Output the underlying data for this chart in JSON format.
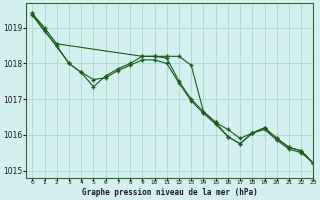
{
  "title": "Graphe pression niveau de la mer (hPa)",
  "background_color": "#d4efef",
  "grid_color": "#b0d8cc",
  "line_color": "#1a5c1a",
  "xlim": [
    -0.5,
    23
  ],
  "ylim": [
    1014.8,
    1019.7
  ],
  "yticks": [
    1015,
    1016,
    1017,
    1018,
    1019
  ],
  "xticks": [
    0,
    1,
    2,
    3,
    4,
    5,
    6,
    7,
    8,
    9,
    10,
    11,
    12,
    13,
    14,
    15,
    16,
    17,
    18,
    19,
    20,
    21,
    22,
    23
  ],
  "series": [
    {
      "x": [
        0,
        1,
        2,
        9,
        10,
        11,
        12,
        13,
        14,
        15,
        16,
        17,
        18,
        19,
        20,
        21,
        22,
        23
      ],
      "y": [
        1019.4,
        1019.0,
        1018.55,
        1018.2,
        1018.2,
        1018.2,
        1018.2,
        1017.95,
        1016.65,
        1016.35,
        1016.15,
        1015.9,
        1016.05,
        1016.2,
        1015.9,
        1015.65,
        1015.55,
        1015.2
      ]
    },
    {
      "x": [
        0,
        3,
        4,
        5,
        6,
        7,
        8,
        9,
        10,
        11,
        12,
        13,
        14,
        15,
        16,
        17,
        18,
        19,
        20,
        21,
        22,
        23
      ],
      "y": [
        1019.4,
        1018.0,
        1017.75,
        1017.35,
        1017.65,
        1017.85,
        1018.0,
        1018.2,
        1018.2,
        1018.15,
        1017.5,
        1017.0,
        1016.65,
        1016.35,
        1015.95,
        1015.75,
        1016.05,
        1016.2,
        1015.9,
        1015.65,
        1015.55,
        1015.2
      ]
    },
    {
      "x": [
        0,
        1,
        2,
        3,
        4,
        5,
        6,
        7,
        8,
        9,
        10,
        11,
        12,
        13,
        14,
        15,
        16,
        17,
        18,
        19,
        20,
        21,
        22,
        23
      ],
      "y": [
        1019.35,
        1018.9,
        1018.5,
        1018.0,
        1017.75,
        1017.55,
        1017.6,
        1017.8,
        1017.95,
        1018.1,
        1018.1,
        1018.0,
        1017.45,
        1016.95,
        1016.6,
        1016.3,
        1015.95,
        1015.75,
        1016.05,
        1016.15,
        1015.85,
        1015.6,
        1015.5,
        1015.2
      ]
    }
  ],
  "markers": [
    "s",
    "s",
    "s"
  ],
  "markersize": [
    2.5,
    2.5,
    2.5
  ]
}
